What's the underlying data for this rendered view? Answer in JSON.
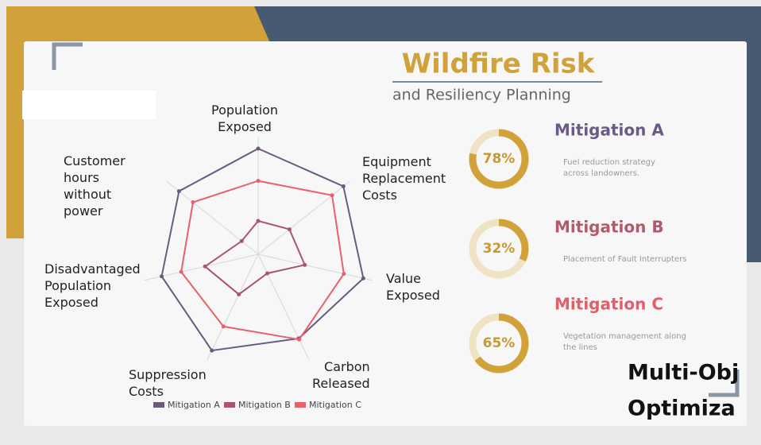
{
  "header": {
    "title": "Wildfire Risk",
    "subtitle": "and Resiliency Planning"
  },
  "chart_data": {
    "type": "radar",
    "categories": [
      "Population\nExposed",
      "Equipment\nReplacement\nCosts",
      "Value\nExposed",
      "Carbon\nReleased",
      "Suppression\nCosts",
      "Disadvantaged\nPopulation\nExposed",
      "Customer\nhours\nwithout\npower"
    ],
    "rlim": [
      0,
      100
    ],
    "series": [
      {
        "name": "Mitigation A",
        "color": "#6b5a7e",
        "values": [
          95,
          98,
          97,
          84,
          96,
          89,
          91
        ]
      },
      {
        "name": "Mitigation B",
        "color": "#a9566c",
        "values": [
          30,
          36,
          43,
          19,
          40,
          49,
          19
        ]
      },
      {
        "name": "Mitigation C",
        "color": "#e8606a",
        "values": [
          66,
          85,
          79,
          85,
          72,
          71,
          75
        ]
      }
    ]
  },
  "mitigations": [
    {
      "title": "Mitigation A",
      "color": "#6b5a85",
      "percent": 78,
      "percent_label": "78%",
      "description": "Fuel reduction strategy\nacross landowners."
    },
    {
      "title": "Mitigation B",
      "color": "#b25a6c",
      "percent": 32,
      "percent_label": "32%",
      "description": "Placement of Fault Interrupters"
    },
    {
      "title": "Mitigation C",
      "color": "#e0606a",
      "percent": 65,
      "percent_label": "65%",
      "description": "Vegetation management along\nthe lines"
    }
  ],
  "footer": {
    "line1": "Multi-Obj",
    "line2": "Optimiza"
  }
}
